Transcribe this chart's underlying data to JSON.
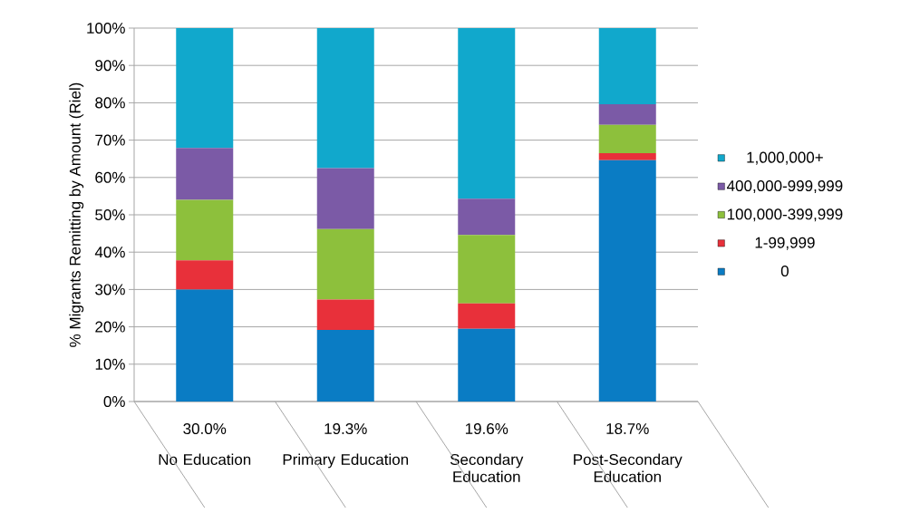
{
  "chart_data": {
    "type": "bar",
    "stacked": true,
    "ylabel": "% Migrants Remitting by Amount (Riel)",
    "categories": [
      "No Education",
      "Primary Education",
      "Secondary Education",
      "Post-Secondary Education"
    ],
    "series": [
      {
        "name": "0",
        "color": "#0a7cc4",
        "values": [
          30.0,
          19.2,
          19.5,
          64.6
        ]
      },
      {
        "name": "1-99,999",
        "color": "#e8303a",
        "values": [
          7.8,
          8.1,
          6.8,
          1.9
        ]
      },
      {
        "name": "100,000-399,999",
        "color": "#8dc03c",
        "values": [
          16.2,
          18.9,
          18.3,
          7.6
        ]
      },
      {
        "name": "400,000-999,999",
        "color": "#7b5aa6",
        "values": [
          13.9,
          16.3,
          9.7,
          5.5
        ]
      },
      {
        "name": "1,000,000+",
        "color": "#11a8cc",
        "values": [
          32.1,
          37.5,
          45.7,
          20.4
        ]
      }
    ],
    "annotations": [
      "30.0%",
      "19.3%",
      "19.6%",
      "18.7%"
    ],
    "ylim": [
      0,
      100
    ],
    "yticks": [
      {
        "value": 0,
        "label": "0%"
      },
      {
        "value": 10,
        "label": "10%"
      },
      {
        "value": 20,
        "label": "20%"
      },
      {
        "value": 30,
        "label": "30%"
      },
      {
        "value": 40,
        "label": "40%"
      },
      {
        "value": 50,
        "label": "50%"
      },
      {
        "value": 60,
        "label": "60%"
      },
      {
        "value": 70,
        "label": "70%"
      },
      {
        "value": 80,
        "label": "80%"
      },
      {
        "value": 90,
        "label": "90%"
      },
      {
        "value": 100,
        "label": "100%"
      }
    ],
    "grid": "y",
    "legend": "right"
  }
}
